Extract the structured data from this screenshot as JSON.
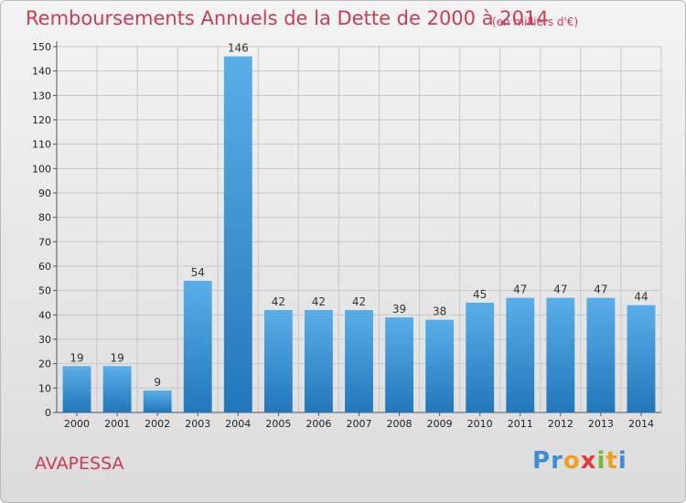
{
  "title": "Remboursements Annuels de la Dette de 2000 à 2014",
  "unit_note": "(en milliers d'€)",
  "commune": "AVAPESSA",
  "logo": {
    "text": "Proxiti"
  },
  "colors": {
    "title": "#cc3d55",
    "bar_top": "#5aaee8",
    "bar_bottom": "#2277bb",
    "grid": "#c8c8c8"
  },
  "chart_data": {
    "type": "bar",
    "title": "Remboursements Annuels de la Dette de 2000 à 2014",
    "ylabel": "",
    "xlabel": "",
    "categories": [
      "2000",
      "2001",
      "2002",
      "2003",
      "2004",
      "2005",
      "2006",
      "2007",
      "2008",
      "2009",
      "2010",
      "2011",
      "2012",
      "2013",
      "2014"
    ],
    "values": [
      19,
      19,
      9,
      54,
      146,
      42,
      42,
      42,
      39,
      38,
      45,
      47,
      47,
      47,
      44
    ],
    "ylim": [
      0,
      150
    ],
    "yticks": [
      0,
      10,
      20,
      30,
      40,
      50,
      60,
      70,
      80,
      90,
      100,
      110,
      120,
      130,
      140,
      150
    ],
    "grid": true,
    "data_labels": true
  }
}
